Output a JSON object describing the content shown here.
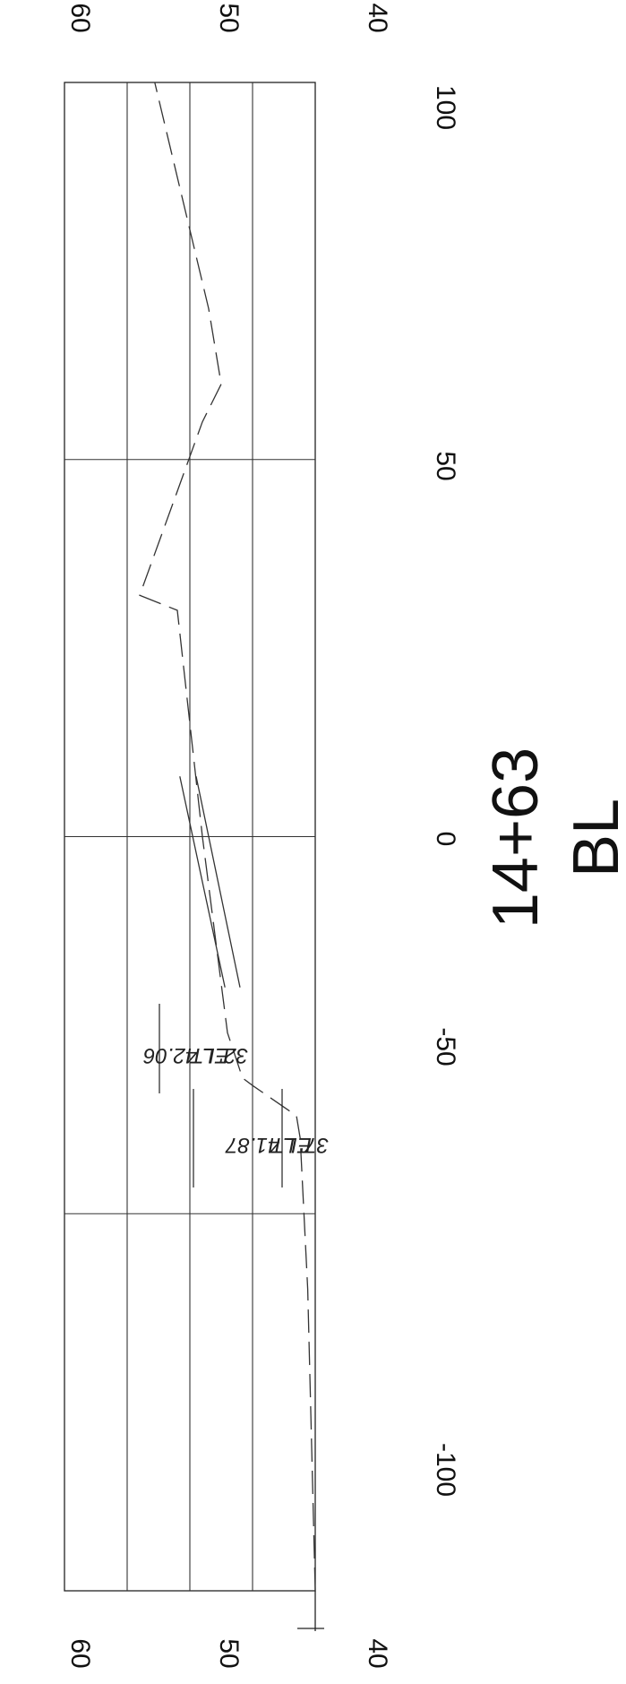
{
  "chart_data": {
    "type": "line",
    "title": "14+63",
    "subtitle": "BL",
    "x_ticks": [
      "-100",
      "-50",
      "0",
      "50",
      "100"
    ],
    "y_ticks": [
      "40",
      "50",
      "60"
    ],
    "xlim": [
      -100,
      100
    ],
    "ylim": [
      40,
      60
    ],
    "grid": true,
    "series": [
      {
        "style": "dashed",
        "x": [
          -100,
          -60,
          -40,
          -37,
          -33,
          -32,
          -26,
          0,
          30,
          32,
          55,
          60,
          70,
          100
        ],
        "y": [
          40.0,
          40.6,
          41.2,
          41.5,
          45.0,
          45.8,
          47.0,
          49.0,
          51.0,
          54.0,
          49.0,
          47.5,
          48.5,
          52.8
        ]
      },
      {
        "style": "solid",
        "x": [
          -20,
          8
        ],
        "y": [
          46.0,
          49.5
        ]
      },
      {
        "style": "solid",
        "x": [
          -20,
          8
        ],
        "y": [
          47.2,
          50.8
        ]
      }
    ],
    "annotations": [
      "37' LT",
      "EL 41.87",
      "32' LT",
      "EL 42.06"
    ]
  }
}
